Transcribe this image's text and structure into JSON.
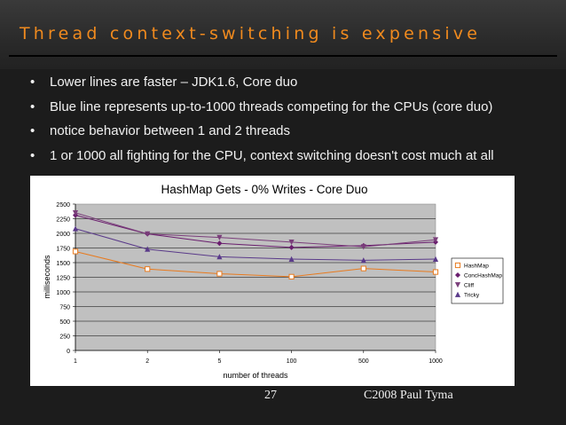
{
  "slide": {
    "title": "Thread context-switching is expensive",
    "bullets": [
      "Lower lines are faster – JDK1.6, Core duo",
      "Blue line represents up-to-1000 threads competing for the CPUs (core duo)",
      "notice behavior between 1 and 2 threads",
      "1 or 1000 all fighting for the CPU, context switching doesn't cost much at all"
    ],
    "page_number": "27",
    "copyright": "C2008 Paul Tyma"
  },
  "chart_data": {
    "type": "line",
    "title": "HashMap Gets - 0% Writes - Core Duo",
    "xlabel": "number of threads",
    "ylabel": "milliseconds",
    "categories": [
      "1",
      "2",
      "5",
      "100",
      "500",
      "1000"
    ],
    "ylim": [
      0,
      2500
    ],
    "yticks": [
      0,
      250,
      500,
      750,
      1000,
      1250,
      1500,
      1750,
      2000,
      2250,
      2500
    ],
    "grid": true,
    "legend_position": "right",
    "series": [
      {
        "name": "HashMap",
        "color": "#e87a1e",
        "marker": "square",
        "values": [
          1690,
          1390,
          1310,
          1260,
          1400,
          1340
        ]
      },
      {
        "name": "ConcHashMap",
        "color": "#6a1e6e",
        "marker": "diamond",
        "values": [
          2310,
          1990,
          1830,
          1760,
          1790,
          1850
        ]
      },
      {
        "name": "Cliff",
        "color": "#7a3e7a",
        "marker": "triangle-down",
        "values": [
          2350,
          1990,
          1930,
          1850,
          1770,
          1890
        ]
      },
      {
        "name": "Tricky",
        "color": "#5a3a8a",
        "marker": "triangle-up",
        "values": [
          2080,
          1730,
          1600,
          1560,
          1540,
          1560
        ]
      }
    ]
  }
}
